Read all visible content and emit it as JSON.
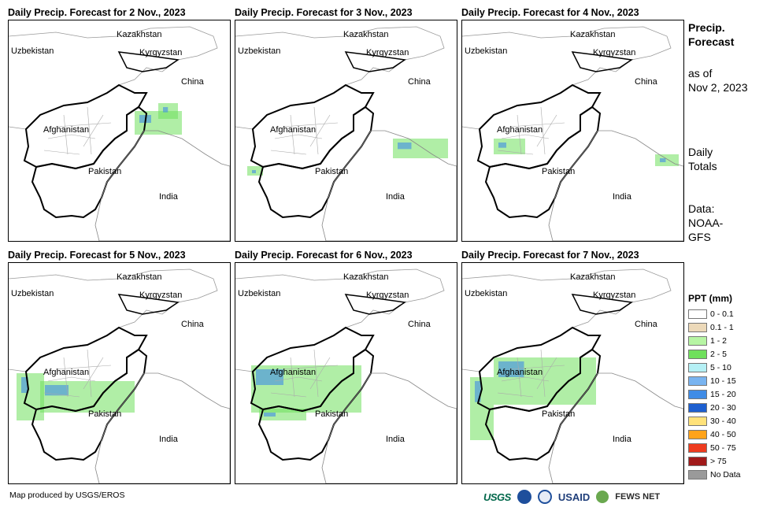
{
  "panels": [
    {
      "title": "Daily Precip. Forecast for 2 Nov., 2023"
    },
    {
      "title": "Daily Precip. Forecast for 3 Nov., 2023"
    },
    {
      "title": "Daily Precip. Forecast for 4 Nov., 2023"
    },
    {
      "title": "Daily Precip. Forecast for 5 Nov., 2023"
    },
    {
      "title": "Daily Precip. Forecast for 6 Nov., 2023"
    },
    {
      "title": "Daily Precip. Forecast for 7 Nov., 2023"
    }
  ],
  "map_labels": {
    "kazakhstan": "Kazakhstan",
    "uzbekistan": "Uzbekistan",
    "kyrgyzstan": "Kyrgyzstan",
    "china": "China",
    "afghanistan": "Afghanistan",
    "pakistan": "Pakistan",
    "india": "India"
  },
  "side": {
    "title_line1": "Precip.",
    "title_line2": "Forecast",
    "asof_line1": "as of",
    "asof_line2": "Nov 2, 2023",
    "daily_line1": "Daily",
    "daily_line2": "Totals",
    "data_line1": "Data:",
    "data_line2": "NOAA-",
    "data_line3": "GFS"
  },
  "legend": {
    "title": "PPT (mm)",
    "items": [
      {
        "label": "0 - 0.1",
        "color": "#ffffff"
      },
      {
        "label": "0.1 - 1",
        "color": "#ecd9b9"
      },
      {
        "label": "1 - 2",
        "color": "#b7f5a4"
      },
      {
        "label": "2 - 5",
        "color": "#6fe05c"
      },
      {
        "label": "5 - 10",
        "color": "#b5f0f5"
      },
      {
        "label": "10 - 15",
        "color": "#79b4f0"
      },
      {
        "label": "15 - 20",
        "color": "#3f8ce6"
      },
      {
        "label": "20 - 30",
        "color": "#1d5fd0"
      },
      {
        "label": "30 - 40",
        "color": "#ffe27a"
      },
      {
        "label": "40 - 50",
        "color": "#ffa31a"
      },
      {
        "label": "50 - 75",
        "color": "#ee3b1f"
      },
      {
        "label": "> 75",
        "color": "#a11a1a"
      },
      {
        "label": "No Data",
        "color": "#9a9a9a"
      }
    ]
  },
  "credit": "Map produced by USGS/EROS",
  "logos": {
    "usgs": "USGS",
    "usaid": "USAID",
    "fews": "FEWS NET"
  }
}
